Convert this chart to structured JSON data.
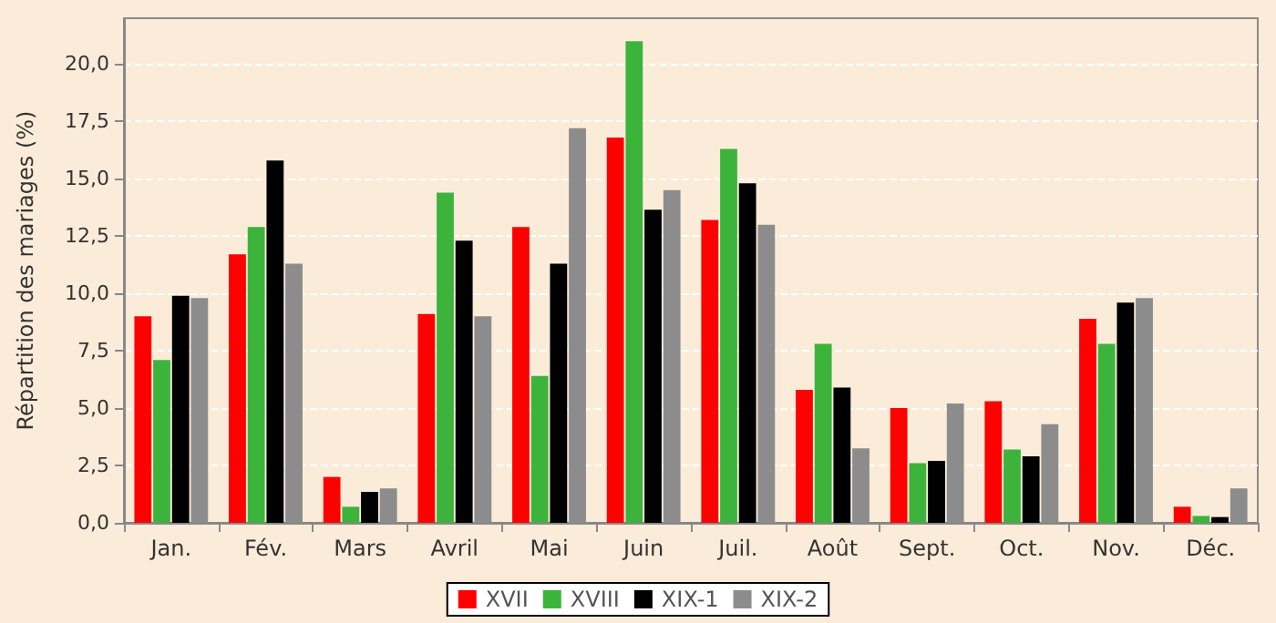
{
  "chart_data": {
    "type": "bar",
    "ylabel": "Répartition des mariages (%)",
    "categories": [
      "Jan.",
      "Fév.",
      "Mars",
      "Avril",
      "Mai",
      "Juin",
      "Juil.",
      "Août",
      "Sept.",
      "Oct.",
      "Nov.",
      "Déc."
    ],
    "series": [
      {
        "name": "XVII",
        "color": "#ff0000",
        "values": [
          9.0,
          11.7,
          2.0,
          9.1,
          12.9,
          16.8,
          13.2,
          5.8,
          5.0,
          5.3,
          8.9,
          0.7
        ]
      },
      {
        "name": "XVIII",
        "color": "#3cb43c",
        "values": [
          7.1,
          12.9,
          0.7,
          14.4,
          6.4,
          21.0,
          16.3,
          7.8,
          2.6,
          3.2,
          7.8,
          0.3
        ]
      },
      {
        "name": "XIX-1",
        "color": "#000000",
        "values": [
          9.9,
          15.8,
          1.35,
          12.3,
          11.3,
          13.65,
          14.8,
          5.9,
          2.7,
          2.9,
          9.6,
          0.25
        ]
      },
      {
        "name": "XIX-2",
        "color": "#8c8c8c",
        "values": [
          9.8,
          11.3,
          1.5,
          9.0,
          17.2,
          14.5,
          13.0,
          3.25,
          5.2,
          4.3,
          9.8,
          1.5
        ]
      }
    ],
    "ylim": [
      0,
      22
    ],
    "yticks": [
      {
        "value": 0,
        "label": "0,0"
      },
      {
        "value": 2.5,
        "label": "2,5"
      },
      {
        "value": 5,
        "label": "5,0"
      },
      {
        "value": 7.5,
        "label": "7,5"
      },
      {
        "value": 10,
        "label": "10,0"
      },
      {
        "value": 12.5,
        "label": "12,5"
      },
      {
        "value": 15,
        "label": "15,0"
      },
      {
        "value": 17.5,
        "label": "17,5"
      },
      {
        "value": 20,
        "label": "20,0"
      }
    ],
    "grid": "y",
    "legend": "bottom"
  }
}
